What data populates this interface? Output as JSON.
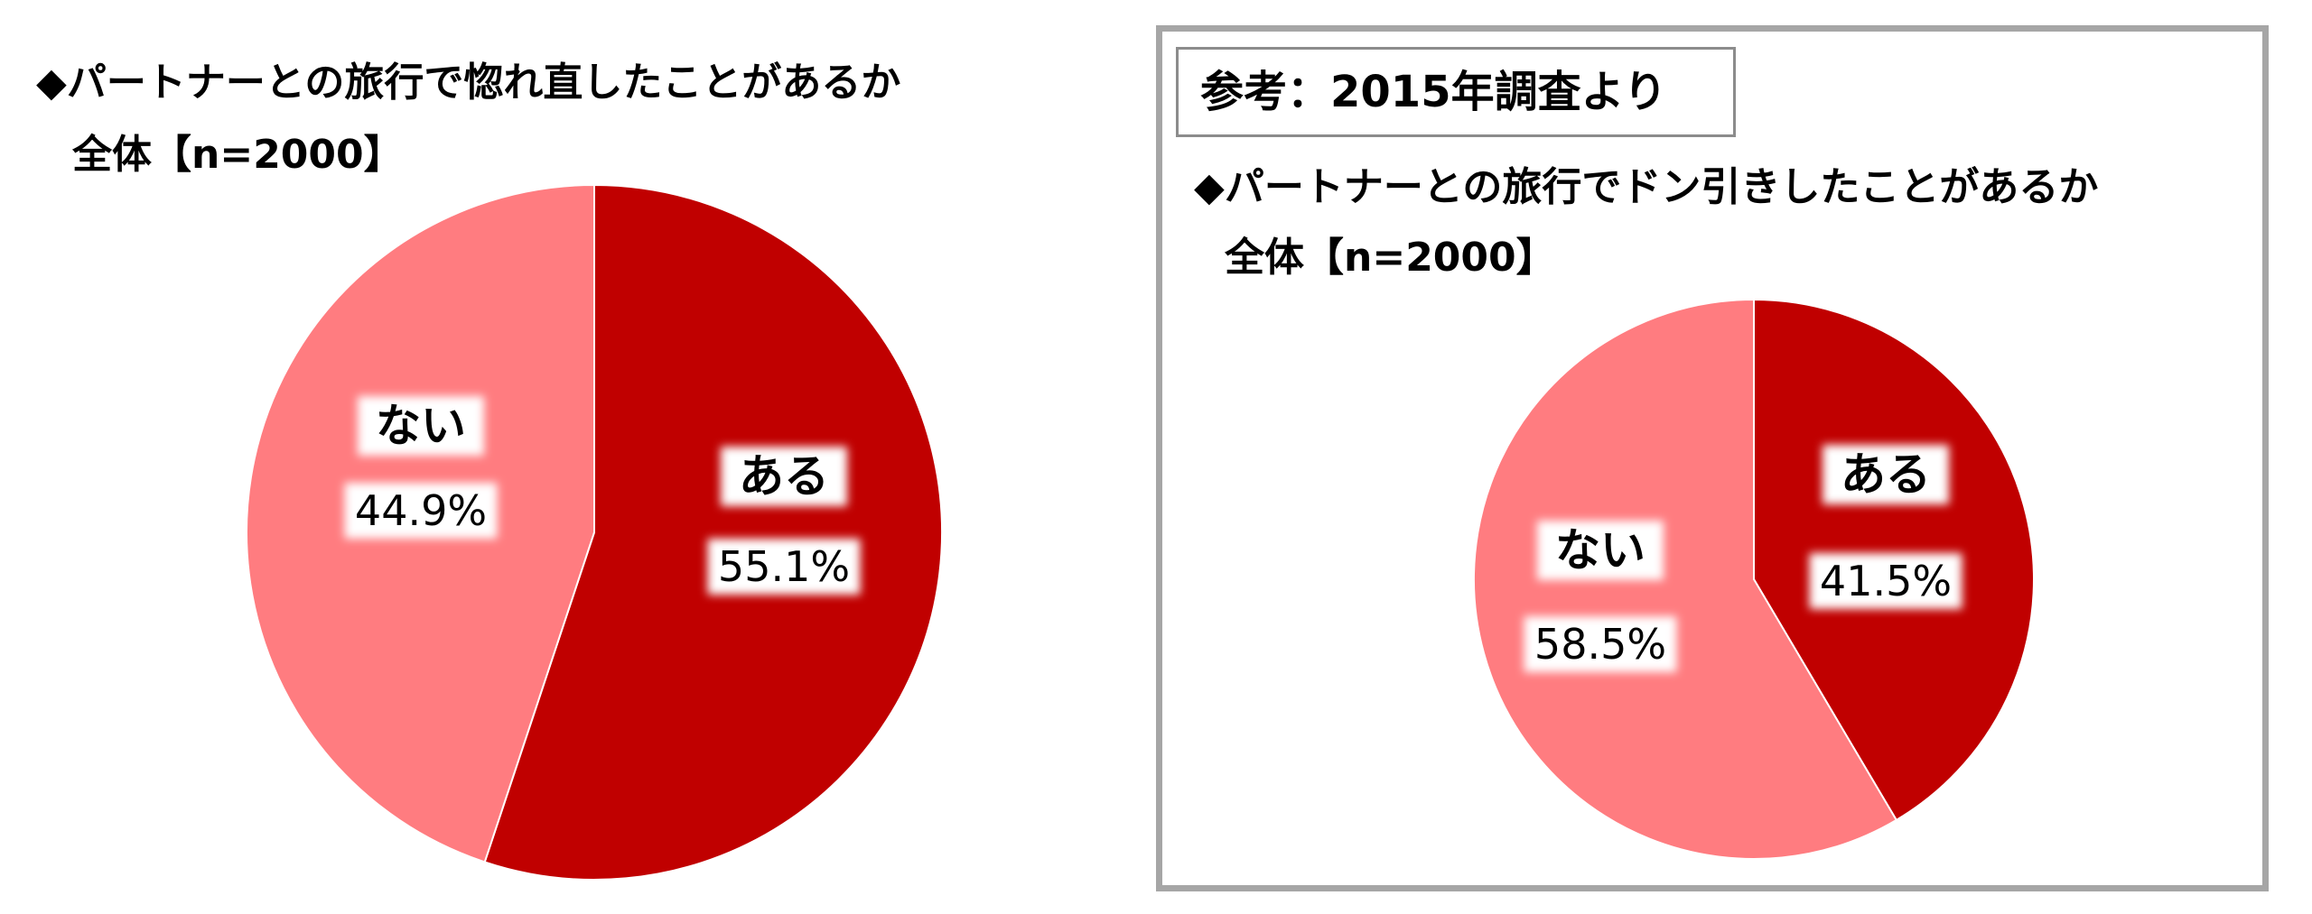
{
  "left_panel": {
    "title_line1": "◆パートナーとの旅行で惚れ直したことがあるか",
    "title_line2": "全体【n=2000】"
  },
  "right_panel": {
    "reference_label": "参考：2015年調査より",
    "title_line1": "◆パートナーとの旅行でドン引きしたことがあるか",
    "title_line2": "全体【n=2000】"
  },
  "chart_data": [
    {
      "type": "pie",
      "title": "◆パートナーとの旅行で惚れ直したことがあるか",
      "subtitle": "全体【n=2000】",
      "categories": [
        "ある",
        "ない"
      ],
      "values": [
        55.1,
        44.9
      ],
      "value_labels": [
        "55.1%",
        "44.9%"
      ],
      "colors": [
        "#c00000",
        "#ff7c80"
      ],
      "start_angle_deg": 0,
      "direction": "clockwise",
      "legend": "none"
    },
    {
      "type": "pie",
      "title": "◆パートナーとの旅行でドン引きしたことがあるか",
      "subtitle": "全体【n=2000】",
      "categories": [
        "ある",
        "ない"
      ],
      "values": [
        41.5,
        58.5
      ],
      "value_labels": [
        "41.5%",
        "58.5%"
      ],
      "colors": [
        "#c00000",
        "#ff7c80"
      ],
      "start_angle_deg": 0,
      "direction": "clockwise",
      "legend": "none"
    }
  ]
}
